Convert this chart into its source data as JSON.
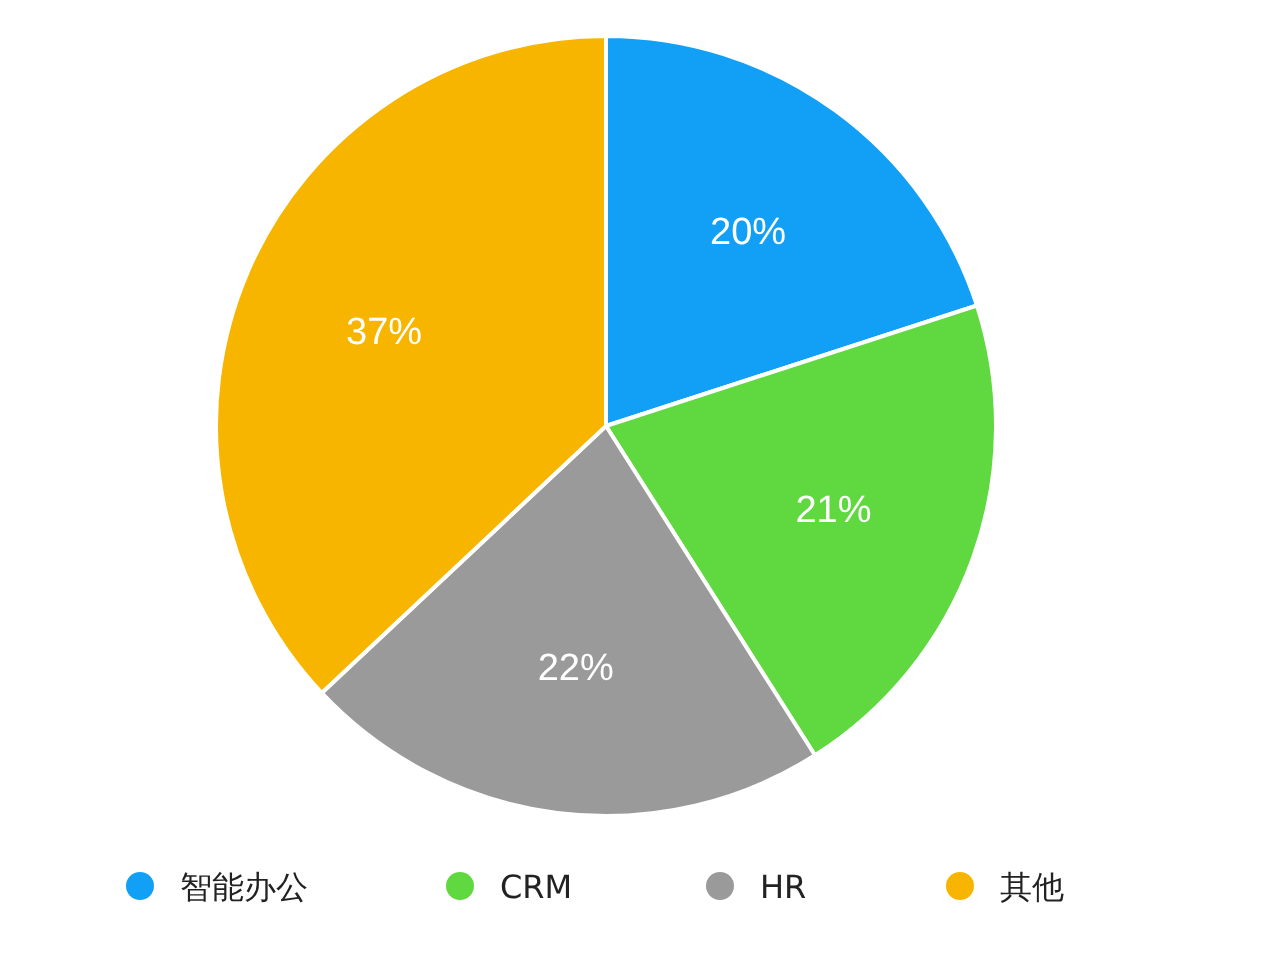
{
  "chart_data": {
    "type": "pie",
    "categories": [
      "智能办公",
      "CRM",
      "HR",
      "其他"
    ],
    "values": [
      20,
      21,
      22,
      37
    ],
    "colors": [
      "#12a0f6",
      "#5fd93f",
      "#9a9a9a",
      "#f7b500"
    ],
    "value_labels": [
      "20%",
      "21%",
      "22%",
      "37%"
    ],
    "legend": "bottom"
  }
}
